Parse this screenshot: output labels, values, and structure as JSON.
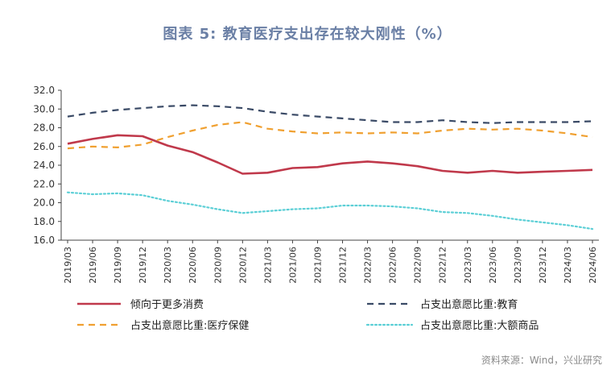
{
  "title": "图表 5:   教育医疗支出存在较大刚性（%）",
  "source": "资料来源：Wind，兴业研究",
  "chart_data": {
    "type": "line",
    "x": [
      "2019/03",
      "2019/06",
      "2019/09",
      "2019/12",
      "2020/03",
      "2020/06",
      "2020/09",
      "2020/12",
      "2021/03",
      "2021/06",
      "2021/09",
      "2021/12",
      "2022/03",
      "2022/06",
      "2022/09",
      "2022/12",
      "2023/03",
      "2023/06",
      "2023/09",
      "2023/12",
      "2024/03",
      "2024/06"
    ],
    "ylim": [
      16.0,
      32.0
    ],
    "yticks": [
      "16.0",
      "18.0",
      "20.0",
      "22.0",
      "24.0",
      "26.0",
      "28.0",
      "30.0",
      "32.0"
    ],
    "series": [
      {
        "name": "倾向于更多消费",
        "color": "#c0394b",
        "dash": "solid",
        "values": [
          26.3,
          26.8,
          27.2,
          27.1,
          26.1,
          25.4,
          24.3,
          23.1,
          23.2,
          23.7,
          23.8,
          24.2,
          24.4,
          24.2,
          23.9,
          23.4,
          23.2,
          23.4,
          23.2,
          23.3,
          23.4,
          23.5
        ]
      },
      {
        "name": "占支出意愿比重:教育",
        "color": "#3a4a66",
        "dash": "dashed",
        "values": [
          29.2,
          29.6,
          29.9,
          30.1,
          30.3,
          30.4,
          30.3,
          30.1,
          29.7,
          29.4,
          29.2,
          29.0,
          28.8,
          28.6,
          28.6,
          28.8,
          28.6,
          28.5,
          28.6,
          28.6,
          28.6,
          28.7
        ]
      },
      {
        "name": "占支出意愿比重:医疗保健",
        "color": "#f0a030",
        "dash": "dashed",
        "values": [
          25.8,
          26.0,
          25.9,
          26.2,
          27.0,
          27.7,
          28.3,
          28.6,
          27.9,
          27.6,
          27.4,
          27.5,
          27.4,
          27.5,
          27.4,
          27.7,
          27.9,
          27.8,
          27.9,
          27.7,
          27.4,
          27.0
        ]
      },
      {
        "name": "占支出意愿比重:大额商品",
        "color": "#5ccfd6",
        "dash": "dotted",
        "values": [
          21.1,
          20.9,
          21.0,
          20.8,
          20.2,
          19.8,
          19.3,
          18.9,
          19.1,
          19.3,
          19.4,
          19.7,
          19.7,
          19.6,
          19.4,
          19.0,
          18.9,
          18.6,
          18.2,
          17.9,
          17.6,
          17.2
        ]
      }
    ],
    "legend_position": "bottom"
  }
}
